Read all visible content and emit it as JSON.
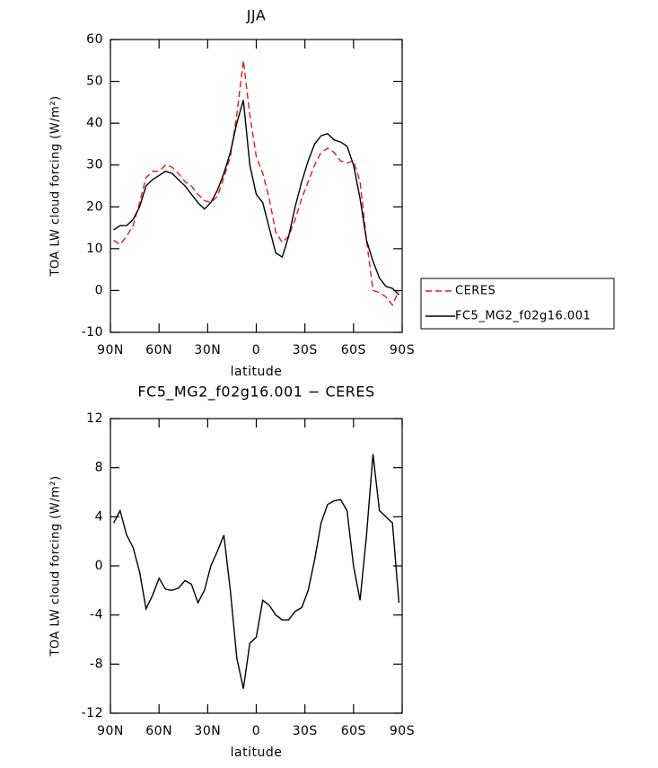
{
  "chart_data": [
    {
      "type": "line",
      "title": "JJA",
      "x_label": "latitude",
      "y_label": "TOA LW cloud forcing (W/m²)",
      "xlim": [
        90,
        -90
      ],
      "xticks": [
        {
          "value": 90,
          "label": "90N"
        },
        {
          "value": 60,
          "label": "60N"
        },
        {
          "value": 30,
          "label": "30N"
        },
        0,
        {
          "value": -30,
          "label": "30S"
        },
        {
          "value": -60,
          "label": "60S"
        },
        {
          "value": -90,
          "label": "90S"
        }
      ],
      "ylim": [
        -10,
        60
      ],
      "yticks": [
        -10,
        0,
        10,
        20,
        30,
        40,
        50,
        60
      ],
      "legend": "right",
      "x": [
        88,
        84,
        80,
        76,
        72,
        68,
        64,
        60,
        56,
        52,
        48,
        44,
        40,
        36,
        32,
        28,
        24,
        20,
        16,
        12,
        8,
        4,
        0,
        -4,
        -8,
        -12,
        -16,
        -20,
        -24,
        -28,
        -32,
        -36,
        -40,
        -44,
        -48,
        -52,
        -56,
        -60,
        -64,
        -68,
        -72,
        -76,
        -80,
        -84,
        -88
      ],
      "series": [
        {
          "name": "CERES",
          "color": "#e41a1c",
          "line_style": "dashed",
          "values": [
            12,
            11,
            13,
            15.5,
            21,
            27,
            28.5,
            28.5,
            30,
            29.5,
            28,
            26,
            25,
            23,
            21.5,
            21,
            22.5,
            27,
            32,
            42,
            55,
            42,
            32,
            28,
            22,
            14,
            11.5,
            13,
            17,
            22,
            26,
            30,
            33,
            34,
            33,
            31,
            30.5,
            31,
            26,
            12,
            0,
            -0.5,
            -1.5,
            -3.5,
            0
          ]
        },
        {
          "name": "FC5_MG2_f02g16.001",
          "color": "#000000",
          "line_style": "solid",
          "values": [
            14.5,
            15.5,
            15.5,
            17,
            20,
            25,
            26.5,
            27.5,
            28.5,
            28,
            26.5,
            25,
            23,
            21,
            19.5,
            21,
            24,
            28,
            33,
            40,
            45.5,
            30,
            23,
            21,
            15,
            9,
            8,
            13,
            20,
            26,
            31,
            35,
            37,
            37.5,
            36,
            35.5,
            34.5,
            30,
            22,
            12,
            7,
            3,
            1,
            0.5,
            -1
          ]
        }
      ]
    },
    {
      "type": "line",
      "title": "FC5_MG2_f02g16.001 − CERES",
      "x_label": "latitude",
      "y_label": "TOA LW cloud forcing (W/m²)",
      "xlim": [
        90,
        -90
      ],
      "xticks": [
        {
          "value": 90,
          "label": "90N"
        },
        {
          "value": 60,
          "label": "60N"
        },
        {
          "value": 30,
          "label": "30N"
        },
        0,
        {
          "value": -30,
          "label": "30S"
        },
        {
          "value": -60,
          "label": "60S"
        },
        {
          "value": -90,
          "label": "90S"
        }
      ],
      "ylim": [
        -12,
        12
      ],
      "yticks": [
        -12,
        -8,
        -4,
        0,
        4,
        8,
        12
      ],
      "x": [
        88,
        84,
        80,
        76,
        72,
        68,
        64,
        60,
        56,
        52,
        48,
        44,
        40,
        36,
        32,
        28,
        24,
        20,
        16,
        12,
        8,
        4,
        0,
        -4,
        -8,
        -12,
        -16,
        -20,
        -24,
        -28,
        -32,
        -36,
        -40,
        -44,
        -48,
        -52,
        -56,
        -60,
        -64,
        -68,
        -72,
        -76,
        -80,
        -84,
        -88
      ],
      "series": [
        {
          "color": "#000000",
          "line_style": "solid",
          "values": [
            3.5,
            4.5,
            2.5,
            1.5,
            -0.5,
            -3.5,
            -2.4,
            -1,
            -1.9,
            -2,
            -1.8,
            -1.2,
            -1.5,
            -3,
            -2,
            0,
            1.2,
            2.5,
            -2,
            -7.5,
            -10,
            -6.3,
            -5.8,
            -2.8,
            -3.2,
            -4,
            -4.4,
            -4.4,
            -3.7,
            -3.4,
            -2,
            0.5,
            3.5,
            5,
            5.3,
            5.4,
            4.5,
            0,
            -2.8,
            2.5,
            9.1,
            4.5,
            4,
            3.5,
            -3
          ]
        }
      ]
    }
  ]
}
